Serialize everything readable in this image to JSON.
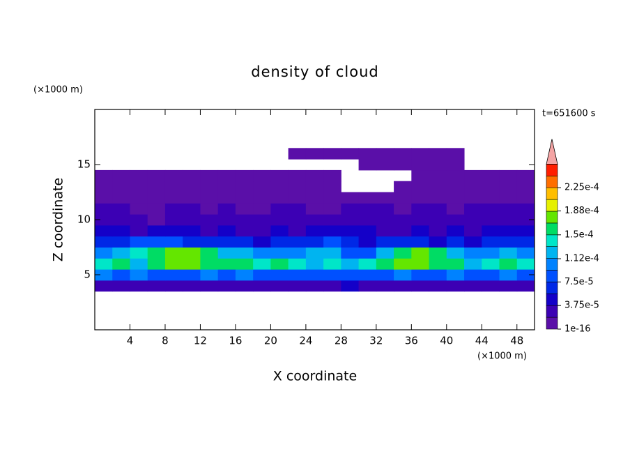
{
  "chart_data": {
    "type": "contour",
    "title": "density of cloud",
    "xlabel": "X coordinate",
    "ylabel": "Z coordinate",
    "x_unit": "(×1000 m)",
    "y_unit": "(×1000 m)",
    "time_label": "t=651600 s",
    "xlim": [
      0,
      50
    ],
    "ylim": [
      0,
      20
    ],
    "xticks": [
      4,
      8,
      12,
      16,
      20,
      24,
      28,
      32,
      36,
      40,
      44,
      48
    ],
    "yticks": [
      5,
      10,
      15
    ],
    "x": [
      1,
      3,
      5,
      7,
      9,
      11,
      13,
      15,
      17,
      19,
      21,
      23,
      25,
      27,
      29,
      31,
      33,
      35,
      37,
      39,
      41,
      43,
      45,
      47,
      49
    ],
    "y": [
      4,
      5,
      6,
      7,
      8,
      9,
      10,
      11,
      12,
      13,
      14,
      15,
      16
    ],
    "z": [
      [
        3e-05,
        3e-05,
        2e-05,
        3e-05,
        3e-05,
        3e-05,
        2e-05,
        3e-05,
        3e-05,
        3e-05,
        3e-05,
        2e-05,
        3e-05,
        3e-05,
        4e-05,
        3e-05,
        3e-05,
        3e-05,
        3e-05,
        2e-05,
        3e-05,
        3e-05,
        3e-05,
        2e-05,
        3e-05
      ],
      [
        0.0001,
        9e-05,
        0.0001,
        9e-05,
        8e-05,
        9e-05,
        0.0001,
        9e-05,
        0.0001,
        9e-05,
        9e-05,
        8e-05,
        9e-05,
        9e-05,
        8e-05,
        8e-05,
        9e-05,
        0.0001,
        9e-05,
        9e-05,
        0.0001,
        8e-05,
        9e-05,
        0.0001,
        9e-05
      ],
      [
        0.00014,
        0.00015,
        0.00013,
        0.00016,
        0.00017,
        0.00018,
        0.00016,
        0.00015,
        0.00015,
        0.00014,
        0.00015,
        0.00014,
        0.00013,
        0.00014,
        0.00012,
        0.00014,
        0.00016,
        0.00017,
        0.00018,
        0.00016,
        0.00015,
        0.00013,
        0.00014,
        0.00015,
        0.00014
      ],
      [
        0.00011,
        0.00012,
        0.00014,
        0.00016,
        0.00018,
        0.00017,
        0.00015,
        0.00013,
        0.00012,
        0.00011,
        0.0001,
        0.00011,
        0.00012,
        0.00013,
        8e-05,
        9e-05,
        0.00013,
        0.00016,
        0.00017,
        0.00015,
        0.00012,
        0.0001,
        0.00011,
        0.00012,
        0.00011
      ],
      [
        6e-05,
        7e-05,
        8e-05,
        9e-05,
        8e-05,
        7e-05,
        6e-05,
        7e-05,
        6e-05,
        5e-05,
        6e-05,
        7e-05,
        6e-05,
        8e-05,
        7e-05,
        5e-05,
        6e-05,
        7e-05,
        6e-05,
        5e-05,
        6e-05,
        5e-05,
        6e-05,
        7e-05,
        6e-05
      ],
      [
        4e-05,
        4e-05,
        3e-05,
        4e-05,
        5e-05,
        4e-05,
        3e-05,
        4e-05,
        3e-05,
        3e-05,
        4e-05,
        3e-05,
        4e-05,
        4e-05,
        5e-05,
        4e-05,
        3e-05,
        3e-05,
        4e-05,
        3e-05,
        4e-05,
        3e-05,
        4e-05,
        5e-05,
        4e-05
      ],
      [
        2e-05,
        3e-05,
        2e-05,
        1e-06,
        2e-05,
        3e-05,
        2e-05,
        2e-05,
        3e-05,
        2e-05,
        2e-05,
        3e-05,
        2e-05,
        2e-05,
        3e-05,
        3e-05,
        2e-05,
        2e-05,
        3e-05,
        2e-05,
        2e-05,
        3e-05,
        2e-05,
        3e-05,
        3e-05
      ],
      [
        2e-05,
        2e-05,
        1e-05,
        1e-05,
        2e-05,
        2e-05,
        1e-05,
        2e-05,
        1e-05,
        1e-05,
        2e-05,
        2e-05,
        1e-05,
        1e-05,
        2e-05,
        2e-05,
        2e-05,
        1e-05,
        2e-05,
        2e-05,
        1e-05,
        2e-05,
        2e-05,
        2e-05,
        2e-05
      ],
      [
        1e-05,
        1e-05,
        5e-06,
        1e-05,
        1e-05,
        5e-06,
        1e-05,
        5e-06,
        5e-06,
        1e-05,
        1e-05,
        5e-06,
        1e-05,
        1e-05,
        5e-06,
        5e-06,
        1e-05,
        5e-06,
        5e-06,
        1e-05,
        5e-06,
        1e-05,
        1e-05,
        1e-05,
        1e-05
      ],
      [
        5e-06,
        5e-06,
        5e-06,
        5e-06,
        5e-06,
        5e-06,
        5e-06,
        5e-06,
        5e-06,
        5e-06,
        5e-06,
        5e-06,
        5e-06,
        5e-06,
        null,
        null,
        null,
        5e-06,
        5e-06,
        5e-06,
        5e-06,
        5e-06,
        5e-06,
        5e-06,
        5e-06
      ],
      [
        2e-06,
        2e-06,
        2e-06,
        2e-06,
        2e-06,
        2e-06,
        2e-06,
        2e-06,
        2e-06,
        2e-06,
        2e-06,
        2e-06,
        2e-06,
        2e-06,
        null,
        null,
        null,
        null,
        2e-06,
        2e-06,
        2e-06,
        2e-06,
        2e-06,
        2e-06,
        2e-06
      ],
      [
        null,
        null,
        null,
        null,
        null,
        null,
        null,
        null,
        null,
        null,
        null,
        null,
        null,
        null,
        null,
        2e-06,
        2e-06,
        2e-06,
        2e-06,
        2e-06,
        2e-06,
        null,
        null,
        null,
        null
      ],
      [
        null,
        null,
        null,
        null,
        null,
        null,
        null,
        null,
        null,
        null,
        null,
        2e-06,
        2e-06,
        2e-06,
        2e-06,
        2e-06,
        2e-06,
        2e-06,
        2e-06,
        2e-06,
        2e-06,
        null,
        null,
        null,
        null
      ]
    ],
    "levels": [
      1e-16,
      1.875e-05,
      3.75e-05,
      5.625e-05,
      7.5e-05,
      9.375e-05,
      0.0001125,
      0.00013125,
      0.00015,
      0.00016875,
      0.0001875,
      0.00020625,
      0.000225,
      0.00024375,
      0.0002625
    ],
    "colors": [
      "#5a0fa8",
      "#3c00b4",
      "#1400c8",
      "#0028e6",
      "#0050ff",
      "#0082ff",
      "#00b4f0",
      "#00e6c8",
      "#00dc64",
      "#64e600",
      "#e6f000",
      "#ffbe00",
      "#ff6e00",
      "#ff1e00"
    ],
    "extend_color": "#f4a4a4",
    "colorbar_ticks": [
      1e-16,
      {
        "value": 3.75e-05,
        "label": "3.75e-5"
      },
      {
        "value": 7.5e-05,
        "label": "7.5e-5"
      },
      {
        "value": 0.000112,
        "label": "1.12e-4"
      },
      {
        "value": 0.00015,
        "label": "1.5e-4"
      },
      {
        "value": 0.000188,
        "label": "1.88e-4"
      },
      {
        "value": 0.000225,
        "label": "2.25e-4"
      }
    ]
  }
}
